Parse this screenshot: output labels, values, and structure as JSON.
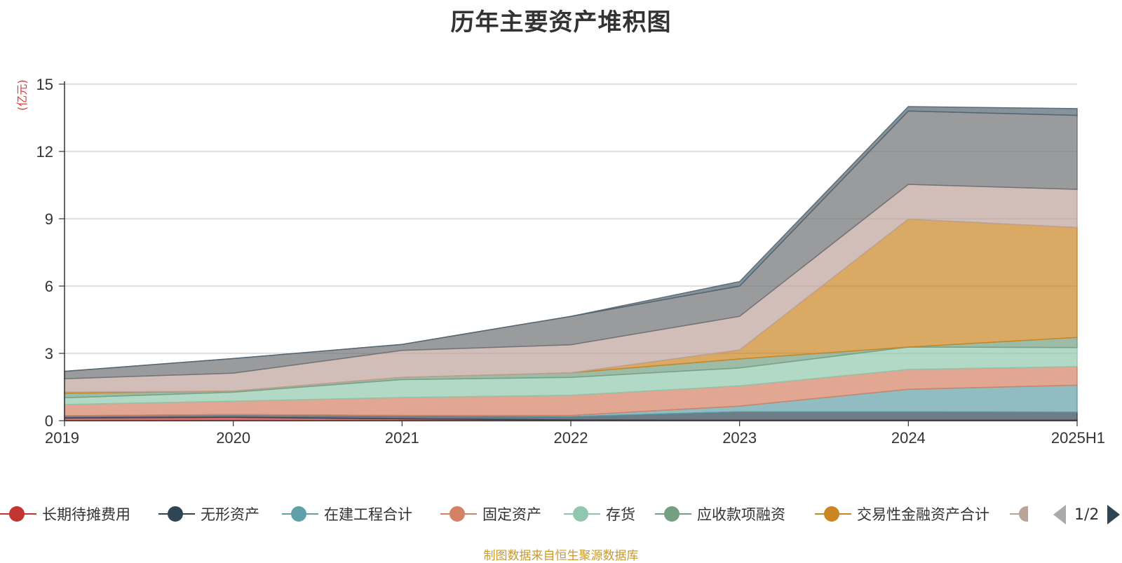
{
  "chart_data": {
    "type": "area",
    "stacked": true,
    "title": "历年主要资产堆积图",
    "unit_label": "(亿元)",
    "categories": [
      "2019",
      "2020",
      "2021",
      "2022",
      "2023",
      "2024",
      "2025H1"
    ],
    "ylim": [
      0,
      15
    ],
    "yticks": [
      "0",
      "3",
      "6",
      "9",
      "12",
      "15"
    ],
    "grid": true,
    "legend_position": "bottom",
    "series": [
      {
        "name": "长期待摊费用",
        "color": "#c23531",
        "values": [
          0.12,
          0.15,
          0.08,
          0.03,
          0.02,
          0.02,
          0.02
        ]
      },
      {
        "name": "无形资产",
        "color": "#2f4554",
        "values": [
          0.1,
          0.12,
          0.15,
          0.15,
          0.38,
          0.38,
          0.36
        ]
      },
      {
        "name": "在建工程合计",
        "color": "#61a0a8",
        "values": [
          0.0,
          0.0,
          0.0,
          0.05,
          0.25,
          1.0,
          1.2
        ]
      },
      {
        "name": "固定资产",
        "color": "#d48265",
        "values": [
          0.5,
          0.6,
          0.8,
          0.9,
          0.9,
          0.88,
          0.83
        ]
      },
      {
        "name": "存货",
        "color": "#91c7ae",
        "values": [
          0.3,
          0.4,
          0.8,
          0.8,
          0.8,
          1.0,
          0.85
        ]
      },
      {
        "name": "应收款项融资",
        "color": "#749f83",
        "values": [
          0.2,
          0.05,
          0.1,
          0.2,
          0.4,
          0.0,
          0.45
        ]
      },
      {
        "name": "交易性金融资产合计",
        "color": "#ca8622",
        "values": [
          0.05,
          0.0,
          0.0,
          0.0,
          0.4,
          5.7,
          4.9
        ]
      },
      {
        "name": "",
        "color": "#bda29a",
        "values": [
          0.6,
          0.8,
          1.2,
          1.25,
          1.5,
          1.55,
          1.7
        ]
      },
      {
        "name": "",
        "color": "#6e7074",
        "values": [
          0.33,
          0.65,
          0.27,
          1.27,
          1.35,
          3.27,
          3.3
        ]
      },
      {
        "name": "",
        "color": "#546570",
        "values": [
          0.0,
          0.0,
          0.0,
          0.0,
          0.2,
          0.2,
          0.3
        ]
      }
    ]
  },
  "legend": {
    "visible_labels": [
      "长期待摊费用",
      "无形资产",
      "在建工程合计",
      "固定资产",
      "存货",
      "应收款项融资",
      "交易性金融资产合计"
    ],
    "partial_color": "#bda29a",
    "page_indicator": "1/2"
  },
  "source_note": "制图数据来自恒生聚源数据库"
}
